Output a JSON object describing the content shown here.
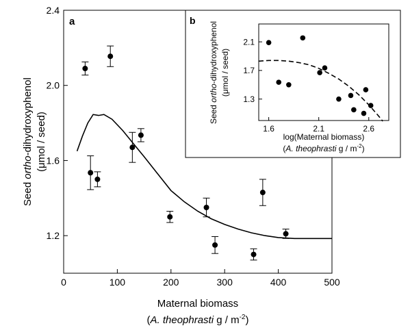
{
  "chart_data": [
    {
      "panel": "a",
      "type": "scatter",
      "xlabel": "Maternal biomass",
      "xlabel2_pre": "(",
      "xlabel2_italic": "A. theophrasti",
      "xlabel2_post": " g / m",
      "xlabel2_sup": "-2",
      "xlabel2_end": ")",
      "ylabel_pre": "Seed ",
      "ylabel_italic": "ortho",
      "ylabel_post": "-dihydroxyphenol",
      "ylabel2": "(μmol / seed)",
      "xlim": [
        0,
        500
      ],
      "ylim": [
        1.0,
        2.4
      ],
      "xticks": [
        "0",
        "100",
        "200",
        "300",
        "400",
        "500"
      ],
      "yticks": [
        "1.2",
        "1.6",
        "2.0",
        "2.4"
      ],
      "points": [
        {
          "x": 40,
          "y": 2.09,
          "err": 0.035
        },
        {
          "x": 50,
          "y": 1.535,
          "err": 0.09
        },
        {
          "x": 63,
          "y": 1.5,
          "err": 0.04
        },
        {
          "x": 87,
          "y": 2.155,
          "err": 0.055
        },
        {
          "x": 128,
          "y": 1.67,
          "err": 0.08
        },
        {
          "x": 144,
          "y": 1.735,
          "err": 0.035
        },
        {
          "x": 198,
          "y": 1.3,
          "err": 0.03
        },
        {
          "x": 266,
          "y": 1.35,
          "err": 0.05
        },
        {
          "x": 282,
          "y": 1.15,
          "err": 0.045
        },
        {
          "x": 354,
          "y": 1.1,
          "err": 0.03
        },
        {
          "x": 371,
          "y": 1.43,
          "err": 0.07
        },
        {
          "x": 414,
          "y": 1.21,
          "err": 0.025
        }
      ],
      "fit_curve": [
        [
          25,
          1.65
        ],
        [
          35,
          1.73
        ],
        [
          45,
          1.8
        ],
        [
          55,
          1.845
        ],
        [
          65,
          1.84
        ],
        [
          75,
          1.845
        ],
        [
          90,
          1.82
        ],
        [
          110,
          1.76
        ],
        [
          130,
          1.69
        ],
        [
          150,
          1.62
        ],
        [
          175,
          1.53
        ],
        [
          200,
          1.44
        ],
        [
          225,
          1.38
        ],
        [
          250,
          1.33
        ],
        [
          275,
          1.29
        ],
        [
          300,
          1.26
        ],
        [
          325,
          1.235
        ],
        [
          350,
          1.215
        ],
        [
          375,
          1.2
        ],
        [
          400,
          1.19
        ],
        [
          430,
          1.185
        ],
        [
          460,
          1.185
        ],
        [
          500,
          1.185
        ]
      ]
    },
    {
      "panel": "b",
      "type": "scatter",
      "xlabel": "log(Maternal biomass)",
      "xlabel2_pre": "(",
      "xlabel2_italic": "A. theophrasti",
      "xlabel2_post": " g / m",
      "xlabel2_sup": "-2",
      "xlabel2_end": ")",
      "ylabel_pre": "Seed ",
      "ylabel_italic": "ortho",
      "ylabel_post": "-dihydroxyphenol",
      "ylabel2": "(μmol / seed)",
      "xlim": [
        1.5,
        2.8
      ],
      "ylim": [
        1.0,
        2.35
      ],
      "xticks": [
        "1.6",
        "2.1",
        "2.6"
      ],
      "yticks": [
        "1.3",
        "1.7",
        "2.1"
      ],
      "points": [
        {
          "x": 1.6,
          "y": 2.09
        },
        {
          "x": 1.7,
          "y": 1.535
        },
        {
          "x": 1.8,
          "y": 1.5
        },
        {
          "x": 1.94,
          "y": 2.155
        },
        {
          "x": 2.11,
          "y": 1.67
        },
        {
          "x": 2.16,
          "y": 1.735
        },
        {
          "x": 2.3,
          "y": 1.3
        },
        {
          "x": 2.42,
          "y": 1.35
        },
        {
          "x": 2.45,
          "y": 1.15
        },
        {
          "x": 2.55,
          "y": 1.1
        },
        {
          "x": 2.57,
          "y": 1.43
        },
        {
          "x": 2.62,
          "y": 1.21
        }
      ],
      "fit_curve": [
        [
          1.5,
          1.83
        ],
        [
          1.6,
          1.84
        ],
        [
          1.7,
          1.84
        ],
        [
          1.8,
          1.83
        ],
        [
          1.9,
          1.81
        ],
        [
          2.0,
          1.78
        ],
        [
          2.1,
          1.73
        ],
        [
          2.2,
          1.66
        ],
        [
          2.3,
          1.58
        ],
        [
          2.4,
          1.48
        ],
        [
          2.5,
          1.36
        ],
        [
          2.6,
          1.22
        ],
        [
          2.7,
          1.06
        ],
        [
          2.74,
          0.99
        ]
      ]
    }
  ]
}
